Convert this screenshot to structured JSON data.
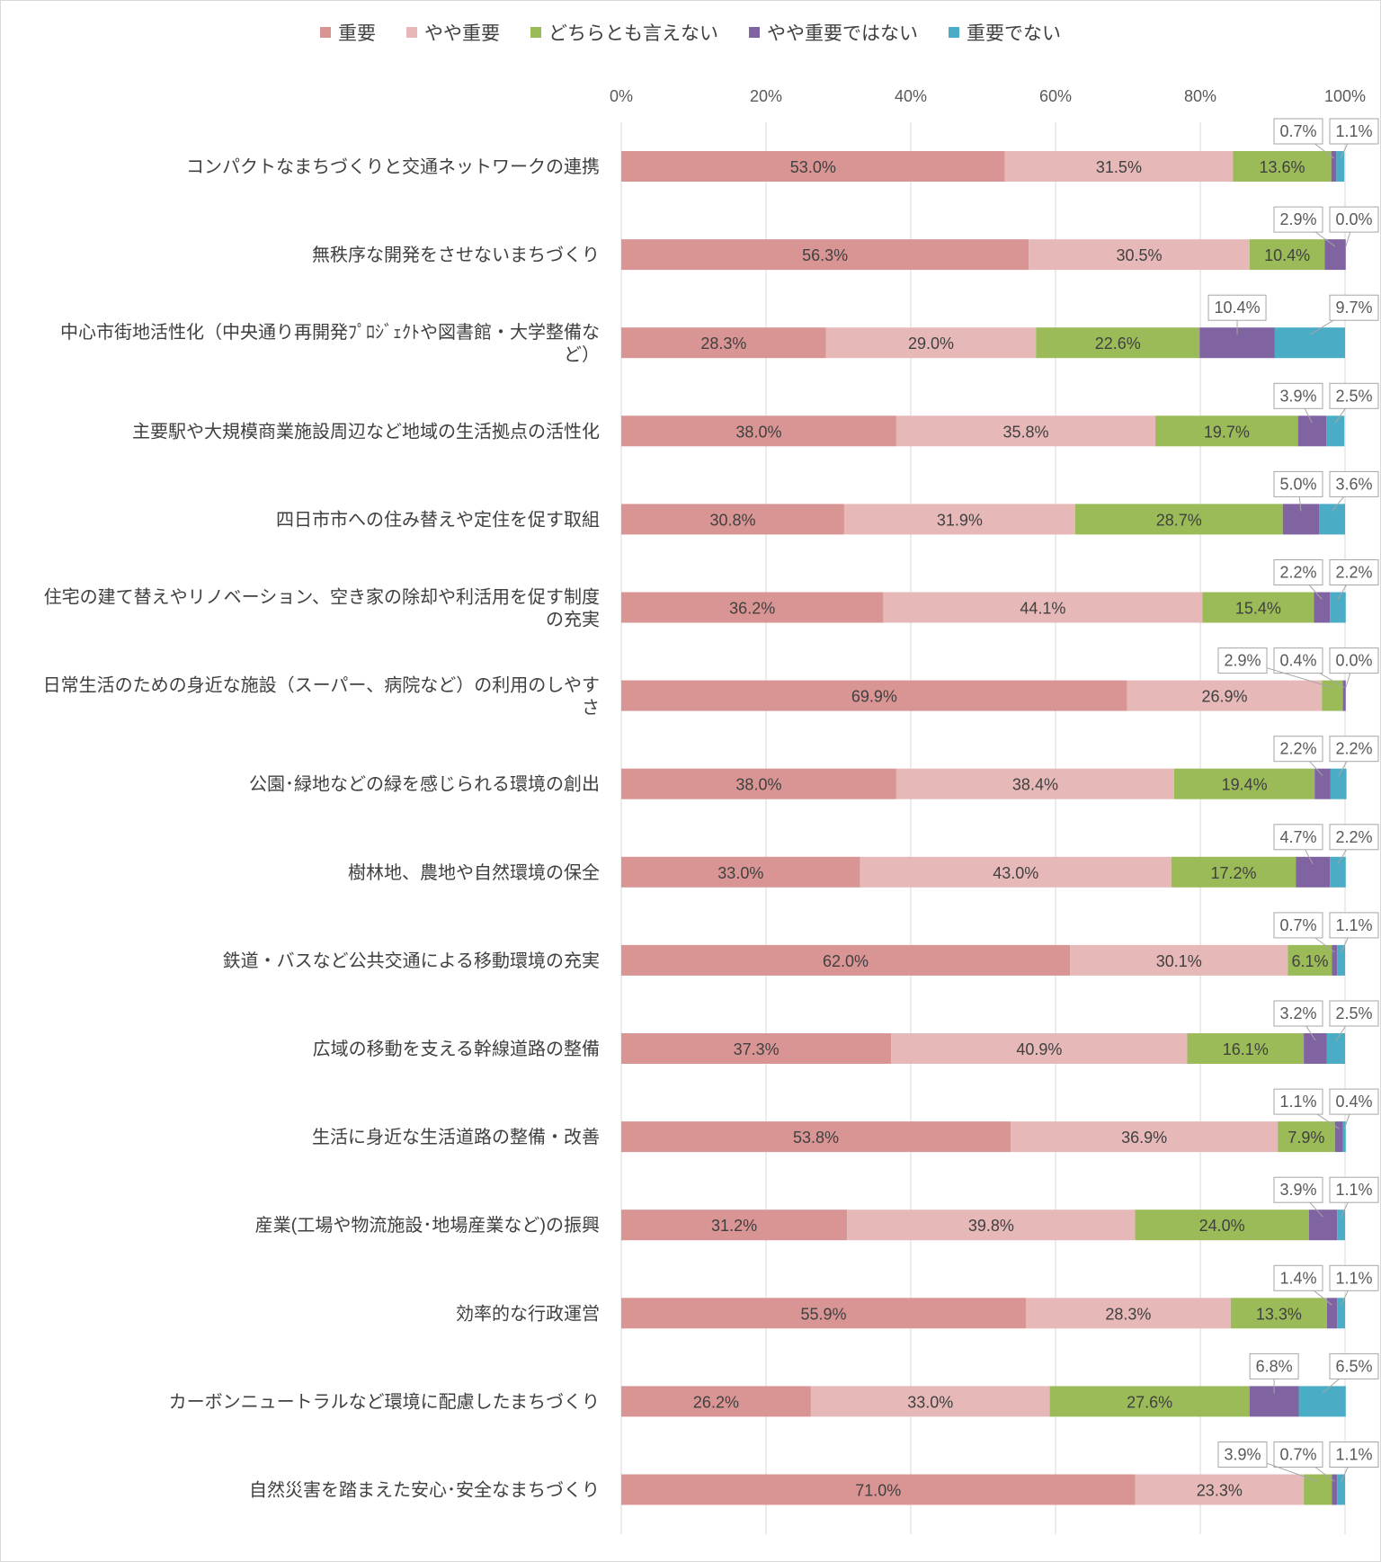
{
  "chart_data": {
    "type": "bar",
    "orientation": "horizontal",
    "stacked": "percent",
    "title": "",
    "xlabel": "",
    "ylabel": "",
    "xlim": [
      0,
      100
    ],
    "grid": true,
    "legend_position": "top",
    "x_ticks": [
      "0%",
      "20%",
      "40%",
      "60%",
      "80%",
      "100%"
    ],
    "colors": [
      "#d99594",
      "#e6b9b8",
      "#9bbb59",
      "#8064a2",
      "#4bacc6"
    ],
    "categories": [
      [
        "コンパクトなまちづくりと交通ネットワークの連携"
      ],
      [
        "無秩序な開発をさせないまちづくり"
      ],
      [
        "中心市街地活性化（中央通り再開発ﾌﾟﾛｼﾞｪｸﾄや図書館・大学整備な",
        "ど）"
      ],
      [
        "主要駅や大規模商業施設周辺など地域の生活拠点の活性化"
      ],
      [
        "四日市市への住み替えや定住を促す取組"
      ],
      [
        "住宅の建て替えやリノベーション、空き家の除却や利活用を促す制度",
        "の充実"
      ],
      [
        "日常生活のための身近な施設（スーパー、病院など）の利用のしやす",
        "さ"
      ],
      [
        "公園･緑地などの緑を感じられる環境の創出"
      ],
      [
        "樹林地、農地や自然環境の保全"
      ],
      [
        "鉄道・バスなど公共交通による移動環境の充実"
      ],
      [
        "広域の移動を支える幹線道路の整備"
      ],
      [
        "生活に身近な生活道路の整備・改善"
      ],
      [
        "産業(工場や物流施設･地場産業など)の振興"
      ],
      [
        "効率的な行政運営"
      ],
      [
        "カーボンニュートラルなど環境に配慮したまちづくり"
      ],
      [
        "自然災害を踏まえた安心･安全なまちづくり"
      ]
    ],
    "series": [
      {
        "name": "重要",
        "values": [
          53.0,
          56.3,
          28.3,
          38.0,
          30.8,
          36.2,
          69.9,
          38.0,
          33.0,
          62.0,
          37.3,
          53.8,
          31.2,
          55.9,
          26.2,
          71.0
        ]
      },
      {
        "name": "やや重要",
        "values": [
          31.5,
          30.5,
          29.0,
          35.8,
          31.9,
          44.1,
          26.9,
          38.4,
          43.0,
          30.1,
          40.9,
          36.9,
          39.8,
          28.3,
          33.0,
          23.3
        ]
      },
      {
        "name": "どちらとも言えない",
        "values": [
          13.6,
          10.4,
          22.6,
          19.7,
          28.7,
          15.4,
          2.9,
          19.4,
          17.2,
          6.1,
          16.1,
          7.9,
          24.0,
          13.3,
          27.6,
          3.9
        ]
      },
      {
        "name": "やや重要ではない",
        "values": [
          0.7,
          2.9,
          10.4,
          3.9,
          5.0,
          2.2,
          0.4,
          2.2,
          4.7,
          0.7,
          3.2,
          1.1,
          3.9,
          1.4,
          6.8,
          0.7
        ]
      },
      {
        "name": "重要でない",
        "values": [
          1.1,
          0.0,
          9.7,
          2.5,
          3.6,
          2.2,
          0.0,
          2.2,
          2.2,
          1.1,
          2.5,
          0.4,
          1.1,
          1.1,
          6.5,
          1.1
        ]
      }
    ]
  }
}
